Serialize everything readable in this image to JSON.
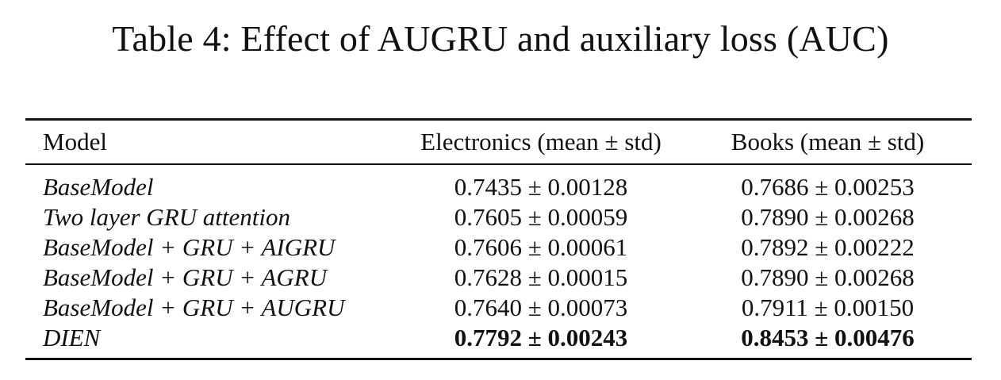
{
  "caption": "Table 4: Effect of AUGRU and auxiliary loss (AUC)",
  "table": {
    "headers": {
      "model": "Model",
      "electronics": "Electronics (mean ± std)",
      "books": "Books (mean ± std)"
    },
    "rows": [
      {
        "model": "BaseModel",
        "electronics": "0.7435 ± 0.00128",
        "books": "0.7686 ± 0.00253",
        "bold": false
      },
      {
        "model": "Two layer GRU attention",
        "electronics": "0.7605 ± 0.00059",
        "books": "0.7890 ± 0.00268",
        "bold": false
      },
      {
        "model": "BaseModel + GRU + AIGRU",
        "electronics": "0.7606 ± 0.00061",
        "books": "0.7892 ± 0.00222",
        "bold": false
      },
      {
        "model": "BaseModel + GRU + AGRU",
        "electronics": "0.7628 ± 0.00015",
        "books": "0.7890 ± 0.00268",
        "bold": false
      },
      {
        "model": "BaseModel + GRU + AUGRU",
        "electronics": "0.7640 ± 0.00073",
        "books": "0.7911 ± 0.00150",
        "bold": false
      },
      {
        "model": "DIEN",
        "electronics": "0.7792 ± 0.00243",
        "books": "0.8453 ± 0.00476",
        "bold": true
      }
    ]
  }
}
